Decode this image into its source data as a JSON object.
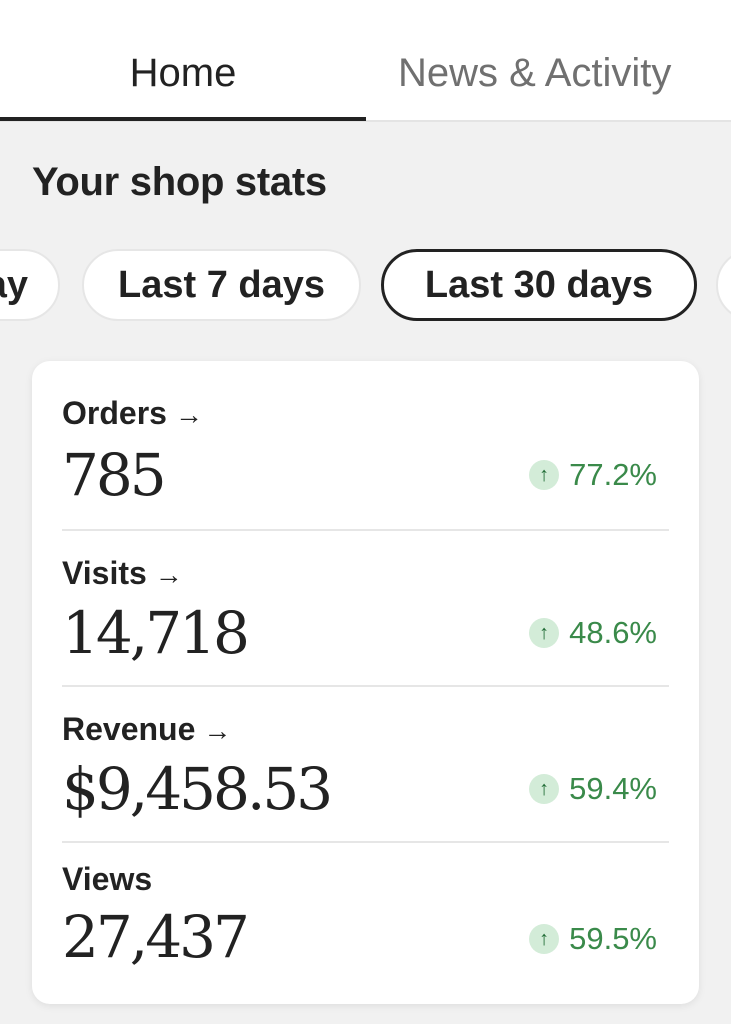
{
  "tabs": {
    "home": "Home",
    "news": "News & Activity"
  },
  "section_title": "Your shop stats",
  "chips": {
    "clipped_left": "ay",
    "last_7": "Last 7 days",
    "last_30": "Last 30 days",
    "selected": "Last 30 days"
  },
  "stats": [
    {
      "label": "Orders",
      "has_arrow": true,
      "value": "785",
      "change": "77.2%",
      "direction": "up"
    },
    {
      "label": "Visits",
      "has_arrow": true,
      "value": "14,718",
      "change": "48.6%",
      "direction": "up"
    },
    {
      "label": "Revenue",
      "has_arrow": true,
      "value": "$9,458.53",
      "change": "59.4%",
      "direction": "up"
    },
    {
      "label": "Views",
      "has_arrow": false,
      "value": "27,437",
      "change": "59.5%",
      "direction": "up"
    }
  ],
  "icons": {
    "arrow": "→",
    "up": "↑"
  },
  "colors": {
    "text": "#222222",
    "muted_tab": "#707070",
    "positive": "#3a8a4a",
    "positive_bg": "#d3ecd8",
    "background": "#f1f1f1"
  }
}
